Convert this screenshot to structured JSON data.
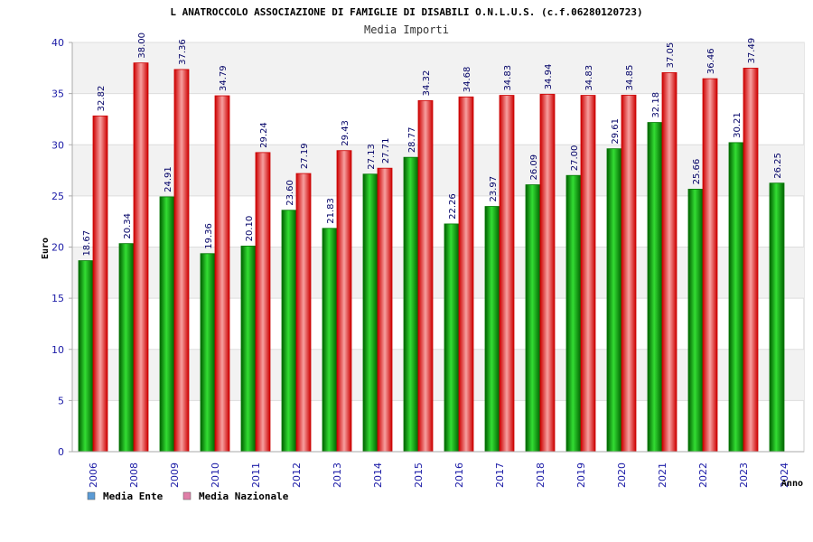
{
  "chart_data": {
    "type": "bar",
    "title": "L ANATROCCOLO ASSOCIAZIONE DI FAMIGLIE DI DISABILI O.N.L.U.S. (c.f.06280120723)",
    "subtitle": "Media Importi",
    "ylabel": "Euro",
    "xlabel": "Anno",
    "ylim": [
      0,
      40
    ],
    "yticks": [
      "0",
      "5",
      "10",
      "15",
      "20",
      "25",
      "30",
      "35",
      "40"
    ],
    "grid": true,
    "legend_position": "bottom-left",
    "categories": [
      "2006",
      "2008",
      "2009",
      "2010",
      "2011",
      "2012",
      "2013",
      "2014",
      "2015",
      "2016",
      "2017",
      "2018",
      "2019",
      "2020",
      "2021",
      "2022",
      "2023",
      "2024"
    ],
    "series": [
      {
        "name": "Media Ente",
        "color": "#00aa00",
        "values": [
          18.67,
          20.34,
          24.91,
          19.36,
          20.1,
          23.6,
          21.83,
          27.13,
          28.77,
          22.26,
          23.97,
          26.09,
          27.0,
          29.61,
          32.18,
          25.66,
          30.21,
          26.25
        ],
        "labels": [
          "18.67",
          "20.34",
          "24.91",
          "19.36",
          "20.10",
          "23.60",
          "21.83",
          "27.13",
          "28.77",
          "22.26",
          "23.97",
          "26.09",
          "27.00",
          "29.61",
          "32.18",
          "25.66",
          "30.21",
          "26.25"
        ]
      },
      {
        "name": "Media Nazionale",
        "color": "#ee2222",
        "values": [
          32.82,
          38.0,
          37.36,
          34.79,
          29.24,
          27.19,
          29.43,
          27.71,
          34.32,
          34.68,
          34.83,
          34.94,
          34.83,
          34.85,
          37.05,
          36.46,
          37.49,
          null
        ],
        "labels": [
          "32.82",
          "38.00",
          "37.36",
          "34.79",
          "29.24",
          "27.19",
          "29.43",
          "27.71",
          "34.32",
          "34.68",
          "34.83",
          "34.94",
          "34.83",
          "34.85",
          "37.05",
          "36.46",
          "37.49",
          null
        ]
      }
    ],
    "legend_colors": [
      "#5b9bd5",
      "#e07fa8"
    ]
  }
}
